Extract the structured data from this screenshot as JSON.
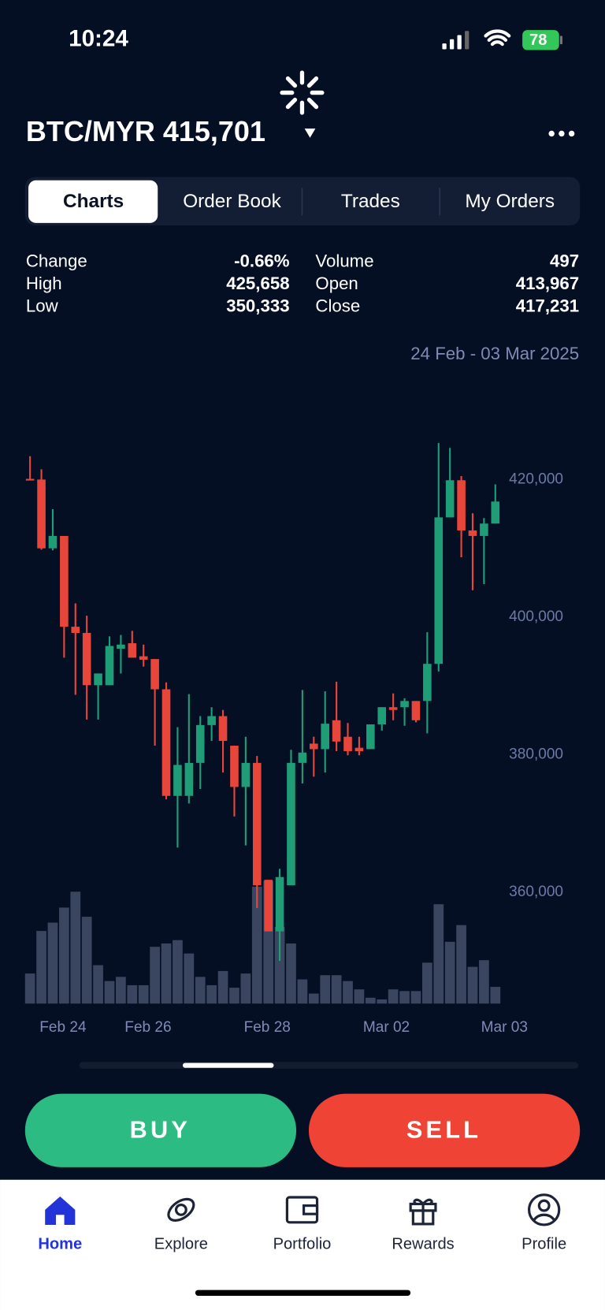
{
  "status": {
    "time": "10:24",
    "battery": "78"
  },
  "header": {
    "pair": "BTC/MYR 415,701"
  },
  "tabs": [
    "Charts",
    "Order Book",
    "Trades",
    "My Orders"
  ],
  "stats": [
    {
      "label": "Change",
      "value": "-0.66%"
    },
    {
      "label": "High",
      "value": "425,658"
    },
    {
      "label": "Low",
      "value": "350,333"
    },
    {
      "label": "Volume",
      "value": "497"
    },
    {
      "label": "Open",
      "value": "413,967"
    },
    {
      "label": "Close",
      "value": "417,231"
    }
  ],
  "range": "24 Feb - 03 Mar 2025",
  "chart_data": {
    "type": "candlestick",
    "up_color": "#1f9d77",
    "down_color": "#e8463a",
    "volume_color": "#3a4660",
    "open": [
      420100,
      420000,
      410000,
      411800,
      398600,
      397700,
      390100,
      390100,
      395400,
      396200,
      394300,
      393900,
      389500,
      374000,
      374000,
      378800,
      384300,
      385600,
      381300,
      375300,
      378800,
      361800,
      354300,
      361000,
      378800,
      381600,
      380800,
      385000,
      382600,
      381000,
      380800,
      384400,
      386900,
      386900,
      387800,
      387800,
      393200,
      414500,
      419900,
      412600,
      411800,
      413600
    ],
    "high": [
      423400,
      421500,
      415700,
      411800,
      402000,
      400200,
      391800,
      397200,
      397400,
      398000,
      396000,
      393900,
      390500,
      384000,
      388800,
      385600,
      386900,
      386500,
      381300,
      382600,
      379800,
      361800,
      363400,
      380700,
      389400,
      382600,
      389200,
      390600,
      384600,
      382600,
      384400,
      386900,
      388900,
      388200,
      387800,
      397800,
      425300,
      424600,
      420500,
      415100,
      414400,
      419300
    ],
    "low": [
      419900,
      409800,
      409700,
      394100,
      388700,
      385100,
      385100,
      390100,
      391800,
      394100,
      392800,
      381300,
      373500,
      366500,
      372900,
      375000,
      382000,
      377400,
      371000,
      366800,
      357700,
      354300,
      350000,
      361000,
      375800,
      376800,
      377400,
      380500,
      379900,
      379900,
      380800,
      383500,
      385000,
      384200,
      384700,
      383100,
      392100,
      414500,
      408700,
      403900,
      404800,
      413600
    ],
    "close": [
      420000,
      410000,
      411800,
      398600,
      397700,
      390100,
      391800,
      395800,
      396000,
      394100,
      393800,
      389500,
      374000,
      378500,
      378800,
      384300,
      385600,
      382000,
      375300,
      378800,
      361000,
      354300,
      362200,
      378800,
      380300,
      380800,
      384500,
      381900,
      380500,
      380500,
      384400,
      386900,
      386500,
      387800,
      385000,
      393200,
      414500,
      419900,
      412600,
      411800,
      413600,
      416800
    ],
    "volume": [
      3.6,
      8.7,
      9.7,
      11.5,
      13.4,
      10.4,
      4.6,
      2.7,
      3.2,
      2.2,
      2.2,
      6.8,
      7.2,
      7.6,
      6.0,
      3.2,
      2.2,
      3.9,
      1.9,
      3.6,
      14.0,
      14.7,
      9.2,
      7.2,
      2.9,
      1.2,
      3.4,
      3.4,
      2.7,
      1.7,
      0.7,
      0.5,
      1.7,
      1.5,
      1.5,
      4.9,
      11.9,
      7.4,
      9.4,
      4.4,
      5.2,
      2.0
    ],
    "ylim": [
      343800,
      426600
    ],
    "yticks": [
      {
        "value": 360000,
        "label": "360,000"
      },
      {
        "value": 380000,
        "label": "380,000"
      },
      {
        "value": 400000,
        "label": "400,000"
      },
      {
        "value": 420000,
        "label": "420,000"
      }
    ],
    "xlim": [
      -0.5,
      41.5
    ],
    "xticks": [
      {
        "value": 2.9,
        "label": "Feb 24"
      },
      {
        "value": 10.4,
        "label": "Feb 26"
      },
      {
        "value": 20.9,
        "label": "Feb 28"
      },
      {
        "value": 31.4,
        "label": "Mar 02"
      },
      {
        "value": 41.8,
        "label": "Mar 03"
      }
    ]
  },
  "buttons": {
    "buy": "BUY",
    "sell": "SELL"
  },
  "nav": [
    "Home",
    "Explore",
    "Portfolio",
    "Rewards",
    "Profile"
  ]
}
